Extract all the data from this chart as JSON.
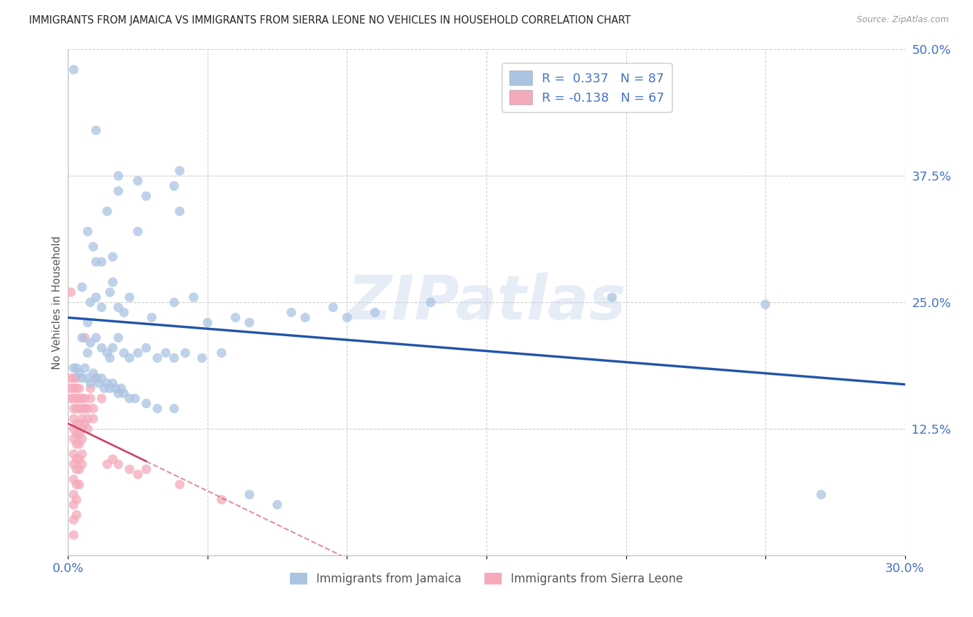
{
  "title": "IMMIGRANTS FROM JAMAICA VS IMMIGRANTS FROM SIERRA LEONE NO VEHICLES IN HOUSEHOLD CORRELATION CHART",
  "source": "Source: ZipAtlas.com",
  "ylabel": "No Vehicles in Household",
  "xlim": [
    0.0,
    0.3
  ],
  "ylim": [
    0.0,
    0.5
  ],
  "xticks": [
    0.0,
    0.05,
    0.1,
    0.15,
    0.2,
    0.25,
    0.3
  ],
  "xticklabels": [
    "0.0%",
    "",
    "",
    "",
    "",
    "",
    "30.0%"
  ],
  "yticks": [
    0.0,
    0.125,
    0.25,
    0.375,
    0.5
  ],
  "yticklabels": [
    "",
    "12.5%",
    "25.0%",
    "37.5%",
    "50.0%"
  ],
  "jamaica_color": "#aac4e2",
  "sierra_color": "#f5aabb",
  "jamaica_line_color": "#2255aa",
  "sierra_line_color": "#cc4466",
  "watermark": "ZIPatlas",
  "background_color": "#ffffff",
  "grid_color": "#cccccc",
  "jamaica_points": [
    [
      0.002,
      0.48
    ],
    [
      0.01,
      0.42
    ],
    [
      0.014,
      0.34
    ],
    [
      0.016,
      0.295
    ],
    [
      0.012,
      0.29
    ],
    [
      0.018,
      0.375
    ],
    [
      0.018,
      0.36
    ],
    [
      0.007,
      0.32
    ],
    [
      0.009,
      0.305
    ],
    [
      0.01,
      0.29
    ],
    [
      0.025,
      0.37
    ],
    [
      0.028,
      0.355
    ],
    [
      0.025,
      0.32
    ],
    [
      0.04,
      0.38
    ],
    [
      0.038,
      0.365
    ],
    [
      0.04,
      0.34
    ],
    [
      0.005,
      0.265
    ],
    [
      0.008,
      0.25
    ],
    [
      0.007,
      0.23
    ],
    [
      0.01,
      0.255
    ],
    [
      0.012,
      0.245
    ],
    [
      0.015,
      0.26
    ],
    [
      0.016,
      0.27
    ],
    [
      0.018,
      0.245
    ],
    [
      0.02,
      0.24
    ],
    [
      0.022,
      0.255
    ],
    [
      0.03,
      0.235
    ],
    [
      0.038,
      0.25
    ],
    [
      0.045,
      0.255
    ],
    [
      0.05,
      0.23
    ],
    [
      0.06,
      0.235
    ],
    [
      0.065,
      0.23
    ],
    [
      0.08,
      0.24
    ],
    [
      0.085,
      0.235
    ],
    [
      0.095,
      0.245
    ],
    [
      0.1,
      0.235
    ],
    [
      0.11,
      0.24
    ],
    [
      0.13,
      0.25
    ],
    [
      0.195,
      0.255
    ],
    [
      0.25,
      0.248
    ],
    [
      0.005,
      0.215
    ],
    [
      0.007,
      0.2
    ],
    [
      0.008,
      0.21
    ],
    [
      0.01,
      0.215
    ],
    [
      0.012,
      0.205
    ],
    [
      0.014,
      0.2
    ],
    [
      0.015,
      0.195
    ],
    [
      0.016,
      0.205
    ],
    [
      0.018,
      0.215
    ],
    [
      0.02,
      0.2
    ],
    [
      0.022,
      0.195
    ],
    [
      0.025,
      0.2
    ],
    [
      0.028,
      0.205
    ],
    [
      0.032,
      0.195
    ],
    [
      0.035,
      0.2
    ],
    [
      0.038,
      0.195
    ],
    [
      0.042,
      0.2
    ],
    [
      0.048,
      0.195
    ],
    [
      0.055,
      0.2
    ],
    [
      0.002,
      0.185
    ],
    [
      0.003,
      0.185
    ],
    [
      0.004,
      0.18
    ],
    [
      0.005,
      0.175
    ],
    [
      0.006,
      0.185
    ],
    [
      0.007,
      0.175
    ],
    [
      0.008,
      0.17
    ],
    [
      0.009,
      0.18
    ],
    [
      0.01,
      0.175
    ],
    [
      0.011,
      0.17
    ],
    [
      0.012,
      0.175
    ],
    [
      0.013,
      0.165
    ],
    [
      0.014,
      0.17
    ],
    [
      0.015,
      0.165
    ],
    [
      0.016,
      0.17
    ],
    [
      0.017,
      0.165
    ],
    [
      0.018,
      0.16
    ],
    [
      0.019,
      0.165
    ],
    [
      0.02,
      0.16
    ],
    [
      0.022,
      0.155
    ],
    [
      0.024,
      0.155
    ],
    [
      0.028,
      0.15
    ],
    [
      0.032,
      0.145
    ],
    [
      0.038,
      0.145
    ],
    [
      0.065,
      0.06
    ],
    [
      0.075,
      0.05
    ],
    [
      0.27,
      0.06
    ]
  ],
  "sierra_points": [
    [
      0.001,
      0.26
    ],
    [
      0.001,
      0.175
    ],
    [
      0.001,
      0.165
    ],
    [
      0.001,
      0.155
    ],
    [
      0.002,
      0.175
    ],
    [
      0.002,
      0.165
    ],
    [
      0.002,
      0.155
    ],
    [
      0.002,
      0.145
    ],
    [
      0.002,
      0.135
    ],
    [
      0.002,
      0.125
    ],
    [
      0.002,
      0.115
    ],
    [
      0.002,
      0.1
    ],
    [
      0.002,
      0.09
    ],
    [
      0.002,
      0.075
    ],
    [
      0.002,
      0.06
    ],
    [
      0.002,
      0.05
    ],
    [
      0.002,
      0.035
    ],
    [
      0.002,
      0.02
    ],
    [
      0.003,
      0.175
    ],
    [
      0.003,
      0.165
    ],
    [
      0.003,
      0.155
    ],
    [
      0.003,
      0.145
    ],
    [
      0.003,
      0.13
    ],
    [
      0.003,
      0.12
    ],
    [
      0.003,
      0.11
    ],
    [
      0.003,
      0.095
    ],
    [
      0.003,
      0.085
    ],
    [
      0.003,
      0.07
    ],
    [
      0.003,
      0.055
    ],
    [
      0.003,
      0.04
    ],
    [
      0.004,
      0.165
    ],
    [
      0.004,
      0.155
    ],
    [
      0.004,
      0.145
    ],
    [
      0.004,
      0.13
    ],
    [
      0.004,
      0.12
    ],
    [
      0.004,
      0.11
    ],
    [
      0.004,
      0.095
    ],
    [
      0.004,
      0.085
    ],
    [
      0.004,
      0.07
    ],
    [
      0.005,
      0.155
    ],
    [
      0.005,
      0.145
    ],
    [
      0.005,
      0.135
    ],
    [
      0.005,
      0.125
    ],
    [
      0.005,
      0.115
    ],
    [
      0.005,
      0.1
    ],
    [
      0.005,
      0.09
    ],
    [
      0.006,
      0.215
    ],
    [
      0.006,
      0.155
    ],
    [
      0.006,
      0.145
    ],
    [
      0.006,
      0.13
    ],
    [
      0.007,
      0.145
    ],
    [
      0.007,
      0.135
    ],
    [
      0.007,
      0.125
    ],
    [
      0.008,
      0.165
    ],
    [
      0.008,
      0.155
    ],
    [
      0.009,
      0.145
    ],
    [
      0.009,
      0.135
    ],
    [
      0.01,
      0.175
    ],
    [
      0.012,
      0.155
    ],
    [
      0.014,
      0.09
    ],
    [
      0.016,
      0.095
    ],
    [
      0.018,
      0.09
    ],
    [
      0.022,
      0.085
    ],
    [
      0.025,
      0.08
    ],
    [
      0.028,
      0.085
    ],
    [
      0.04,
      0.07
    ],
    [
      0.055,
      0.055
    ]
  ]
}
